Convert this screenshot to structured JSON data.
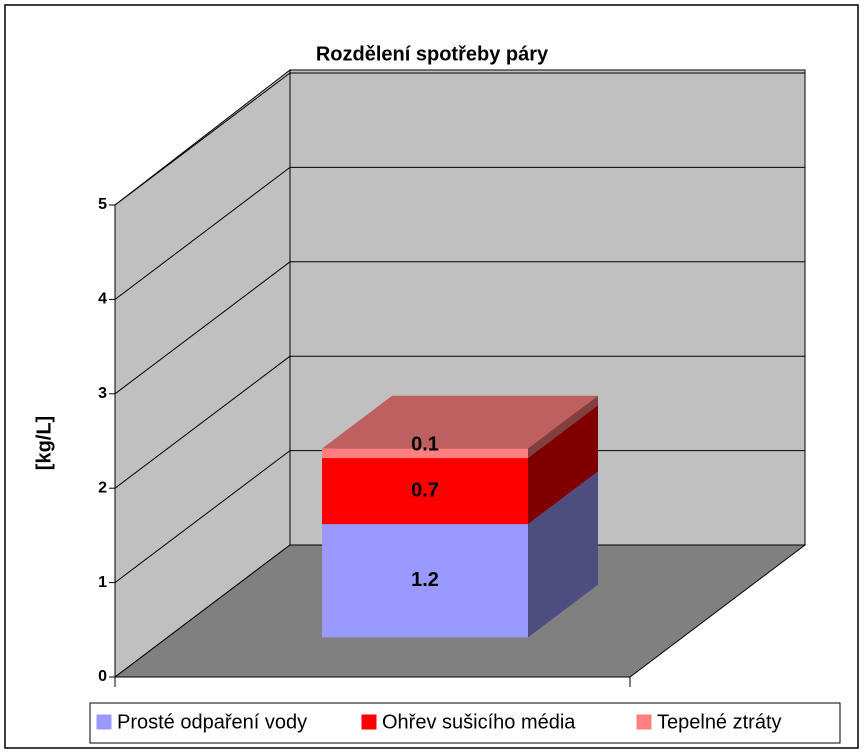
{
  "chart_data": {
    "type": "bar3d_stacked",
    "title": "Rozdělení spotřeby páry",
    "y_label": "[kg/L]",
    "categories": [
      null
    ],
    "series": [
      {
        "name": "Prosté odpaření vody",
        "color": "#9999ff",
        "values": [
          1.2
        ]
      },
      {
        "name": "Ohřev sušicího média",
        "color": "#ff0000",
        "values": [
          0.7
        ]
      },
      {
        "name": "Tepelné ztráty",
        "color": "#ff8080",
        "values": [
          0.1
        ]
      }
    ],
    "ylim": [
      0,
      5
    ],
    "yticks": [
      0,
      1,
      2,
      3,
      4,
      5
    ],
    "grid": true,
    "legend": "bottom"
  }
}
